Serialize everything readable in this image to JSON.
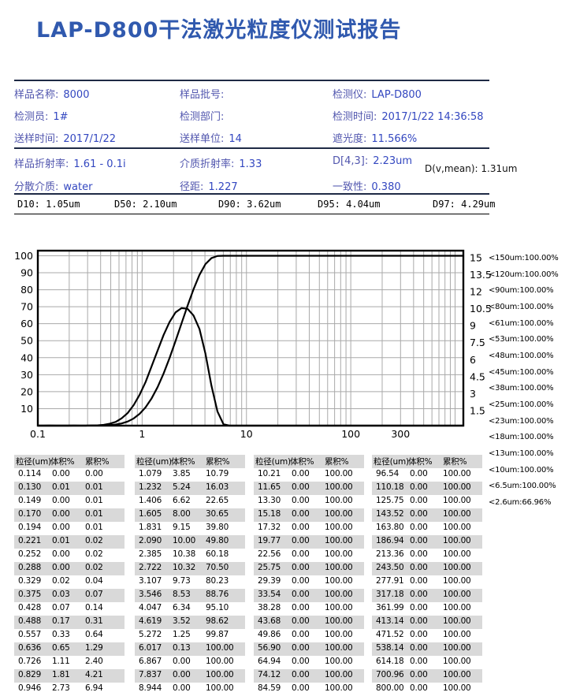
{
  "title": "LAP-D800干法激光粒度仪测试报告",
  "colors": {
    "title_blue": "#3059ae",
    "label_blue": "#5156ae",
    "value_blue": "#3347c0",
    "rule_dark": "#1e2a45",
    "stripe_gray": "#d9d9d9",
    "grid_gray": "#a9a9a9",
    "curve_black": "#000000"
  },
  "info": {
    "fields": [
      {
        "label": "样品名称:",
        "value": "8000"
      },
      {
        "label": "样品批号:",
        "value": ""
      },
      {
        "label": "检测仪:",
        "value": "LAP-D800"
      },
      {
        "label": "检测员:",
        "value": "1#"
      },
      {
        "label": "检测部门:",
        "value": ""
      },
      {
        "label": "检测时间:",
        "value": "2017/1/22 14:36:58"
      },
      {
        "label": "送样时间:",
        "value": "2017/1/22"
      },
      {
        "label": "送样单位:",
        "value": "14"
      },
      {
        "label": "遮光度:",
        "value": "11.566%"
      }
    ]
  },
  "optics": {
    "row1": [
      {
        "label": "样品折射率:",
        "value": "1.61 - 0.1i"
      },
      {
        "label": "介质折射率:",
        "value": "1.33"
      },
      {
        "label": "D[4,3]:",
        "value": "2.23um"
      }
    ],
    "dv_mean": {
      "label": "D(v,mean):",
      "value": "1.31um"
    },
    "row2": [
      {
        "label": "分散介质:",
        "value": "water"
      },
      {
        "label": "径距:",
        "value": "1.227"
      },
      {
        "label": "一致性:",
        "value": "0.380"
      }
    ]
  },
  "d_values": [
    {
      "label": "D10:",
      "value": "1.05um"
    },
    {
      "label": "D50:",
      "value": "2.10um"
    },
    {
      "label": "D90:",
      "value": "3.62um"
    },
    {
      "label": "D95:",
      "value": "4.04um"
    },
    {
      "label": "D97:",
      "value": "4.29um"
    }
  ],
  "percent_list": [
    {
      "label": "<150um:",
      "value": "100.00%"
    },
    {
      "label": "<120um:",
      "value": "100.00%"
    },
    {
      "label": "<90um:",
      "value": "100.00%"
    },
    {
      "label": "<80um:",
      "value": "100.00%"
    },
    {
      "label": "<61um:",
      "value": "100.00%"
    },
    {
      "label": "<53um:",
      "value": "100.00%"
    },
    {
      "label": "<48um:",
      "value": "100.00%"
    },
    {
      "label": "<45um:",
      "value": "100.00%"
    },
    {
      "label": "<38um:",
      "value": "100.00%"
    },
    {
      "label": "<25um:",
      "value": "100.00%"
    },
    {
      "label": "<23um:",
      "value": "100.00%"
    },
    {
      "label": "<18um:",
      "value": "100.00%"
    },
    {
      "label": "<13um:",
      "value": "100.00%"
    },
    {
      "label": "<10um:",
      "value": "100.00%"
    },
    {
      "label": "<6.5um:",
      "value": "100.00%"
    },
    {
      "label": "<2.6um:",
      "value": "66.96%"
    }
  ],
  "tables": {
    "headers": [
      "粒径(um)",
      "体积%",
      "累积%"
    ],
    "groups": [
      [
        [
          "0.114",
          "0.00",
          "0.00"
        ],
        [
          "0.130",
          "0.01",
          "0.01"
        ],
        [
          "0.149",
          "0.00",
          "0.01"
        ],
        [
          "0.170",
          "0.00",
          "0.01"
        ],
        [
          "0.194",
          "0.00",
          "0.01"
        ],
        [
          "0.221",
          "0.01",
          "0.02"
        ],
        [
          "0.252",
          "0.00",
          "0.02"
        ],
        [
          "0.288",
          "0.00",
          "0.02"
        ],
        [
          "0.329",
          "0.02",
          "0.04"
        ],
        [
          "0.375",
          "0.03",
          "0.07"
        ],
        [
          "0.428",
          "0.07",
          "0.14"
        ],
        [
          "0.488",
          "0.17",
          "0.31"
        ],
        [
          "0.557",
          "0.33",
          "0.64"
        ],
        [
          "0.636",
          "0.65",
          "1.29"
        ],
        [
          "0.726",
          "1.11",
          "2.40"
        ],
        [
          "0.829",
          "1.81",
          "4.21"
        ],
        [
          "0.946",
          "2.73",
          "6.94"
        ]
      ],
      [
        [
          "1.079",
          "3.85",
          "10.79"
        ],
        [
          "1.232",
          "5.24",
          "16.03"
        ],
        [
          "1.406",
          "6.62",
          "22.65"
        ],
        [
          "1.605",
          "8.00",
          "30.65"
        ],
        [
          "1.831",
          "9.15",
          "39.80"
        ],
        [
          "2.090",
          "10.00",
          "49.80"
        ],
        [
          "2.385",
          "10.38",
          "60.18"
        ],
        [
          "2.722",
          "10.32",
          "70.50"
        ],
        [
          "3.107",
          "9.73",
          "80.23"
        ],
        [
          "3.546",
          "8.53",
          "88.76"
        ],
        [
          "4.047",
          "6.34",
          "95.10"
        ],
        [
          "4.619",
          "3.52",
          "98.62"
        ],
        [
          "5.272",
          "1.25",
          "99.87"
        ],
        [
          "6.017",
          "0.13",
          "100.00"
        ],
        [
          "6.867",
          "0.00",
          "100.00"
        ],
        [
          "7.837",
          "0.00",
          "100.00"
        ],
        [
          "8.944",
          "0.00",
          "100.00"
        ]
      ],
      [
        [
          "10.21",
          "0.00",
          "100.00"
        ],
        [
          "11.65",
          "0.00",
          "100.00"
        ],
        [
          "13.30",
          "0.00",
          "100.00"
        ],
        [
          "15.18",
          "0.00",
          "100.00"
        ],
        [
          "17.32",
          "0.00",
          "100.00"
        ],
        [
          "19.77",
          "0.00",
          "100.00"
        ],
        [
          "22.56",
          "0.00",
          "100.00"
        ],
        [
          "25.75",
          "0.00",
          "100.00"
        ],
        [
          "29.39",
          "0.00",
          "100.00"
        ],
        [
          "33.54",
          "0.00",
          "100.00"
        ],
        [
          "38.28",
          "0.00",
          "100.00"
        ],
        [
          "43.68",
          "0.00",
          "100.00"
        ],
        [
          "49.86",
          "0.00",
          "100.00"
        ],
        [
          "56.90",
          "0.00",
          "100.00"
        ],
        [
          "64.94",
          "0.00",
          "100.00"
        ],
        [
          "74.12",
          "0.00",
          "100.00"
        ],
        [
          "84.59",
          "0.00",
          "100.00"
        ]
      ],
      [
        [
          "96.54",
          "0.00",
          "100.00"
        ],
        [
          "110.18",
          "0.00",
          "100.00"
        ],
        [
          "125.75",
          "0.00",
          "100.00"
        ],
        [
          "143.52",
          "0.00",
          "100.00"
        ],
        [
          "163.80",
          "0.00",
          "100.00"
        ],
        [
          "186.94",
          "0.00",
          "100.00"
        ],
        [
          "213.36",
          "0.00",
          "100.00"
        ],
        [
          "243.50",
          "0.00",
          "100.00"
        ],
        [
          "277.91",
          "0.00",
          "100.00"
        ],
        [
          "317.18",
          "0.00",
          "100.00"
        ],
        [
          "361.99",
          "0.00",
          "100.00"
        ],
        [
          "413.14",
          "0.00",
          "100.00"
        ],
        [
          "471.52",
          "0.00",
          "100.00"
        ],
        [
          "538.14",
          "0.00",
          "100.00"
        ],
        [
          "614.18",
          "0.00",
          "100.00"
        ],
        [
          "700.96",
          "0.00",
          "100.00"
        ],
        [
          "800.00",
          "0.00",
          "100.00"
        ]
      ]
    ]
  },
  "chart_data": {
    "type": "line",
    "title": "",
    "xlabel": "",
    "x_axis": {
      "scale": "log",
      "min": 0.1,
      "max": 1200,
      "tick_labels": [
        {
          "v": 0.1,
          "l": "0.1"
        },
        {
          "v": 1,
          "l": "1"
        },
        {
          "v": 10,
          "l": "10"
        },
        {
          "v": 100,
          "l": "100"
        },
        {
          "v": 300,
          "l": "300"
        }
      ]
    },
    "y_left": {
      "min": 0,
      "max": 103,
      "ticks": [
        10,
        20,
        30,
        40,
        50,
        60,
        70,
        80,
        90,
        100
      ]
    },
    "y_right": {
      "min": 0,
      "max": 15.45,
      "ticks": [
        1.5,
        3,
        4.5,
        6,
        7.5,
        9,
        10.5,
        12,
        13.5,
        15
      ],
      "left_equiv_of_max_tick": 100
    },
    "grid": true,
    "x": [
      0.114,
      0.13,
      0.149,
      0.17,
      0.194,
      0.221,
      0.252,
      0.288,
      0.329,
      0.375,
      0.428,
      0.488,
      0.557,
      0.636,
      0.726,
      0.829,
      0.946,
      1.079,
      1.232,
      1.406,
      1.605,
      1.831,
      2.09,
      2.385,
      2.722,
      3.107,
      3.546,
      4.047,
      4.619,
      5.272,
      6.017,
      6.867,
      7.837,
      8.944,
      10.21,
      11.65,
      13.3,
      15.18,
      17.32,
      19.77,
      22.56,
      25.75,
      29.39,
      33.54,
      38.28,
      43.68,
      49.86,
      56.9,
      64.94,
      74.12,
      84.59,
      96.54,
      110.18,
      125.75,
      143.52,
      163.8,
      186.94,
      213.36,
      243.5,
      277.91,
      317.18,
      361.99,
      413.14,
      471.52,
      538.14,
      614.18,
      700.96,
      800.0
    ],
    "series": [
      {
        "name": "累积%",
        "axis": "left",
        "values": [
          0.0,
          0.01,
          0.01,
          0.01,
          0.01,
          0.02,
          0.02,
          0.02,
          0.04,
          0.07,
          0.14,
          0.31,
          0.64,
          1.29,
          2.4,
          4.21,
          6.94,
          10.79,
          16.03,
          22.65,
          30.65,
          39.8,
          49.8,
          60.18,
          70.5,
          80.23,
          88.76,
          95.1,
          98.62,
          99.87,
          100,
          100,
          100,
          100,
          100,
          100,
          100,
          100,
          100,
          100,
          100,
          100,
          100,
          100,
          100,
          100,
          100,
          100,
          100,
          100,
          100,
          100,
          100,
          100,
          100,
          100,
          100,
          100,
          100,
          100,
          100,
          100,
          100,
          100,
          100,
          100,
          100,
          100
        ]
      },
      {
        "name": "体积%",
        "axis": "right",
        "values": [
          0.0,
          0.01,
          0.0,
          0.0,
          0.0,
          0.01,
          0.0,
          0.0,
          0.02,
          0.03,
          0.07,
          0.17,
          0.33,
          0.65,
          1.11,
          1.81,
          2.73,
          3.85,
          5.24,
          6.62,
          8.0,
          9.15,
          10.0,
          10.38,
          10.32,
          9.73,
          8.53,
          6.34,
          3.52,
          1.25,
          0.13,
          0,
          0,
          0,
          0,
          0,
          0,
          0,
          0,
          0,
          0,
          0,
          0,
          0,
          0,
          0,
          0,
          0,
          0,
          0,
          0,
          0,
          0,
          0,
          0,
          0,
          0,
          0,
          0,
          0,
          0,
          0,
          0,
          0,
          0,
          0,
          0,
          0
        ]
      }
    ]
  }
}
